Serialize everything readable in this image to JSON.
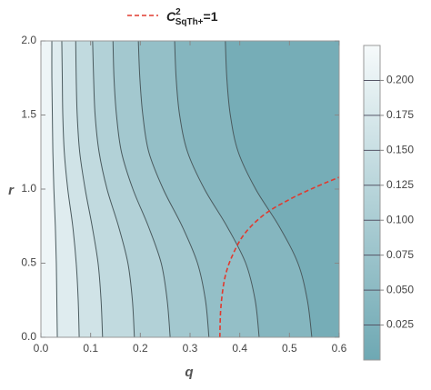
{
  "chart_data": {
    "type": "contour",
    "xlabel": "q",
    "ylabel": "r",
    "xlim": [
      0,
      0.6
    ],
    "ylim": [
      0,
      2.0
    ],
    "xticks": [
      {
        "value": 0,
        "label": "0.0"
      },
      0.1,
      0.2,
      0.3,
      0.4,
      0.5,
      0.6
    ],
    "yticks": [
      {
        "value": 0,
        "label": "0.0"
      },
      0.5,
      {
        "value": 1,
        "label": "1.0"
      },
      1.5,
      {
        "value": 2,
        "label": "2.0"
      }
    ],
    "colorbar": {
      "lim": [
        0,
        0.225
      ],
      "low_color": "#6ea8b3",
      "high_color": "#f6fafb",
      "ticks": [
        0.025,
        {
          "value": 0.05,
          "label": "0.050"
        },
        0.075,
        {
          "value": 0.1,
          "label": "0.100"
        },
        0.125,
        {
          "value": 0.15,
          "label": "0.150"
        },
        0.175,
        {
          "value": 0.2,
          "label": "0.200"
        }
      ]
    },
    "contours": [
      {
        "level": 0.2,
        "q": [
          0.033,
          0.032,
          0.031,
          0.029,
          0.026,
          0.024,
          0.023,
          0.022,
          0.022
        ],
        "r": [
          0,
          0.25,
          0.5,
          0.75,
          1.0,
          1.25,
          1.5,
          1.75,
          2.0
        ]
      },
      {
        "level": 0.175,
        "q": [
          0.077,
          0.075,
          0.071,
          0.064,
          0.054,
          0.047,
          0.044,
          0.043,
          0.042
        ],
        "r": [
          0,
          0.25,
          0.5,
          0.75,
          1.0,
          1.25,
          1.5,
          1.75,
          2.0
        ]
      },
      {
        "level": 0.15,
        "q": [
          0.124,
          0.121,
          0.115,
          0.103,
          0.089,
          0.078,
          0.073,
          0.071,
          0.07
        ],
        "r": [
          0,
          0.25,
          0.5,
          0.75,
          1.0,
          1.25,
          1.5,
          1.75,
          2.0
        ]
      },
      {
        "level": 0.125,
        "q": [
          0.188,
          0.184,
          0.175,
          0.156,
          0.133,
          0.117,
          0.109,
          0.106,
          0.104
        ],
        "r": [
          0,
          0.25,
          0.5,
          0.75,
          1.0,
          1.25,
          1.5,
          1.75,
          2.0
        ]
      },
      {
        "level": 0.1,
        "q": [
          0.26,
          0.254,
          0.242,
          0.216,
          0.185,
          0.162,
          0.152,
          0.147,
          0.145
        ],
        "r": [
          0,
          0.25,
          0.5,
          0.75,
          1.0,
          1.25,
          1.5,
          1.75,
          2.0
        ]
      },
      {
        "level": 0.075,
        "q": [
          0.338,
          0.331,
          0.315,
          0.284,
          0.246,
          0.217,
          0.205,
          0.199,
          0.196
        ],
        "r": [
          0,
          0.25,
          0.5,
          0.75,
          1.0,
          1.25,
          1.5,
          1.75,
          2.0
        ]
      },
      {
        "level": 0.05,
        "q": [
          0.439,
          0.431,
          0.412,
          0.374,
          0.329,
          0.295,
          0.279,
          0.272,
          0.269
        ],
        "r": [
          0,
          0.25,
          0.5,
          0.75,
          1.0,
          1.25,
          1.5,
          1.75,
          2.0
        ]
      },
      {
        "level": 0.025,
        "q": [
          0.545,
          0.536,
          0.517,
          0.479,
          0.432,
          0.397,
          0.381,
          0.374,
          0.371
        ],
        "r": [
          0,
          0.25,
          0.5,
          0.75,
          1.0,
          1.25,
          1.5,
          1.75,
          2.0
        ]
      }
    ],
    "curve": {
      "legend": {
        "base": "C",
        "sup": "2",
        "sub": "SqTh+",
        "tail": "=1"
      },
      "color": "#e03a2f",
      "x": [
        0.36,
        0.362,
        0.37,
        0.385,
        0.41,
        0.45,
        0.5,
        0.55,
        0.6
      ],
      "y": [
        0,
        0.2,
        0.4,
        0.55,
        0.7,
        0.83,
        0.93,
        1.01,
        1.08
      ]
    }
  }
}
